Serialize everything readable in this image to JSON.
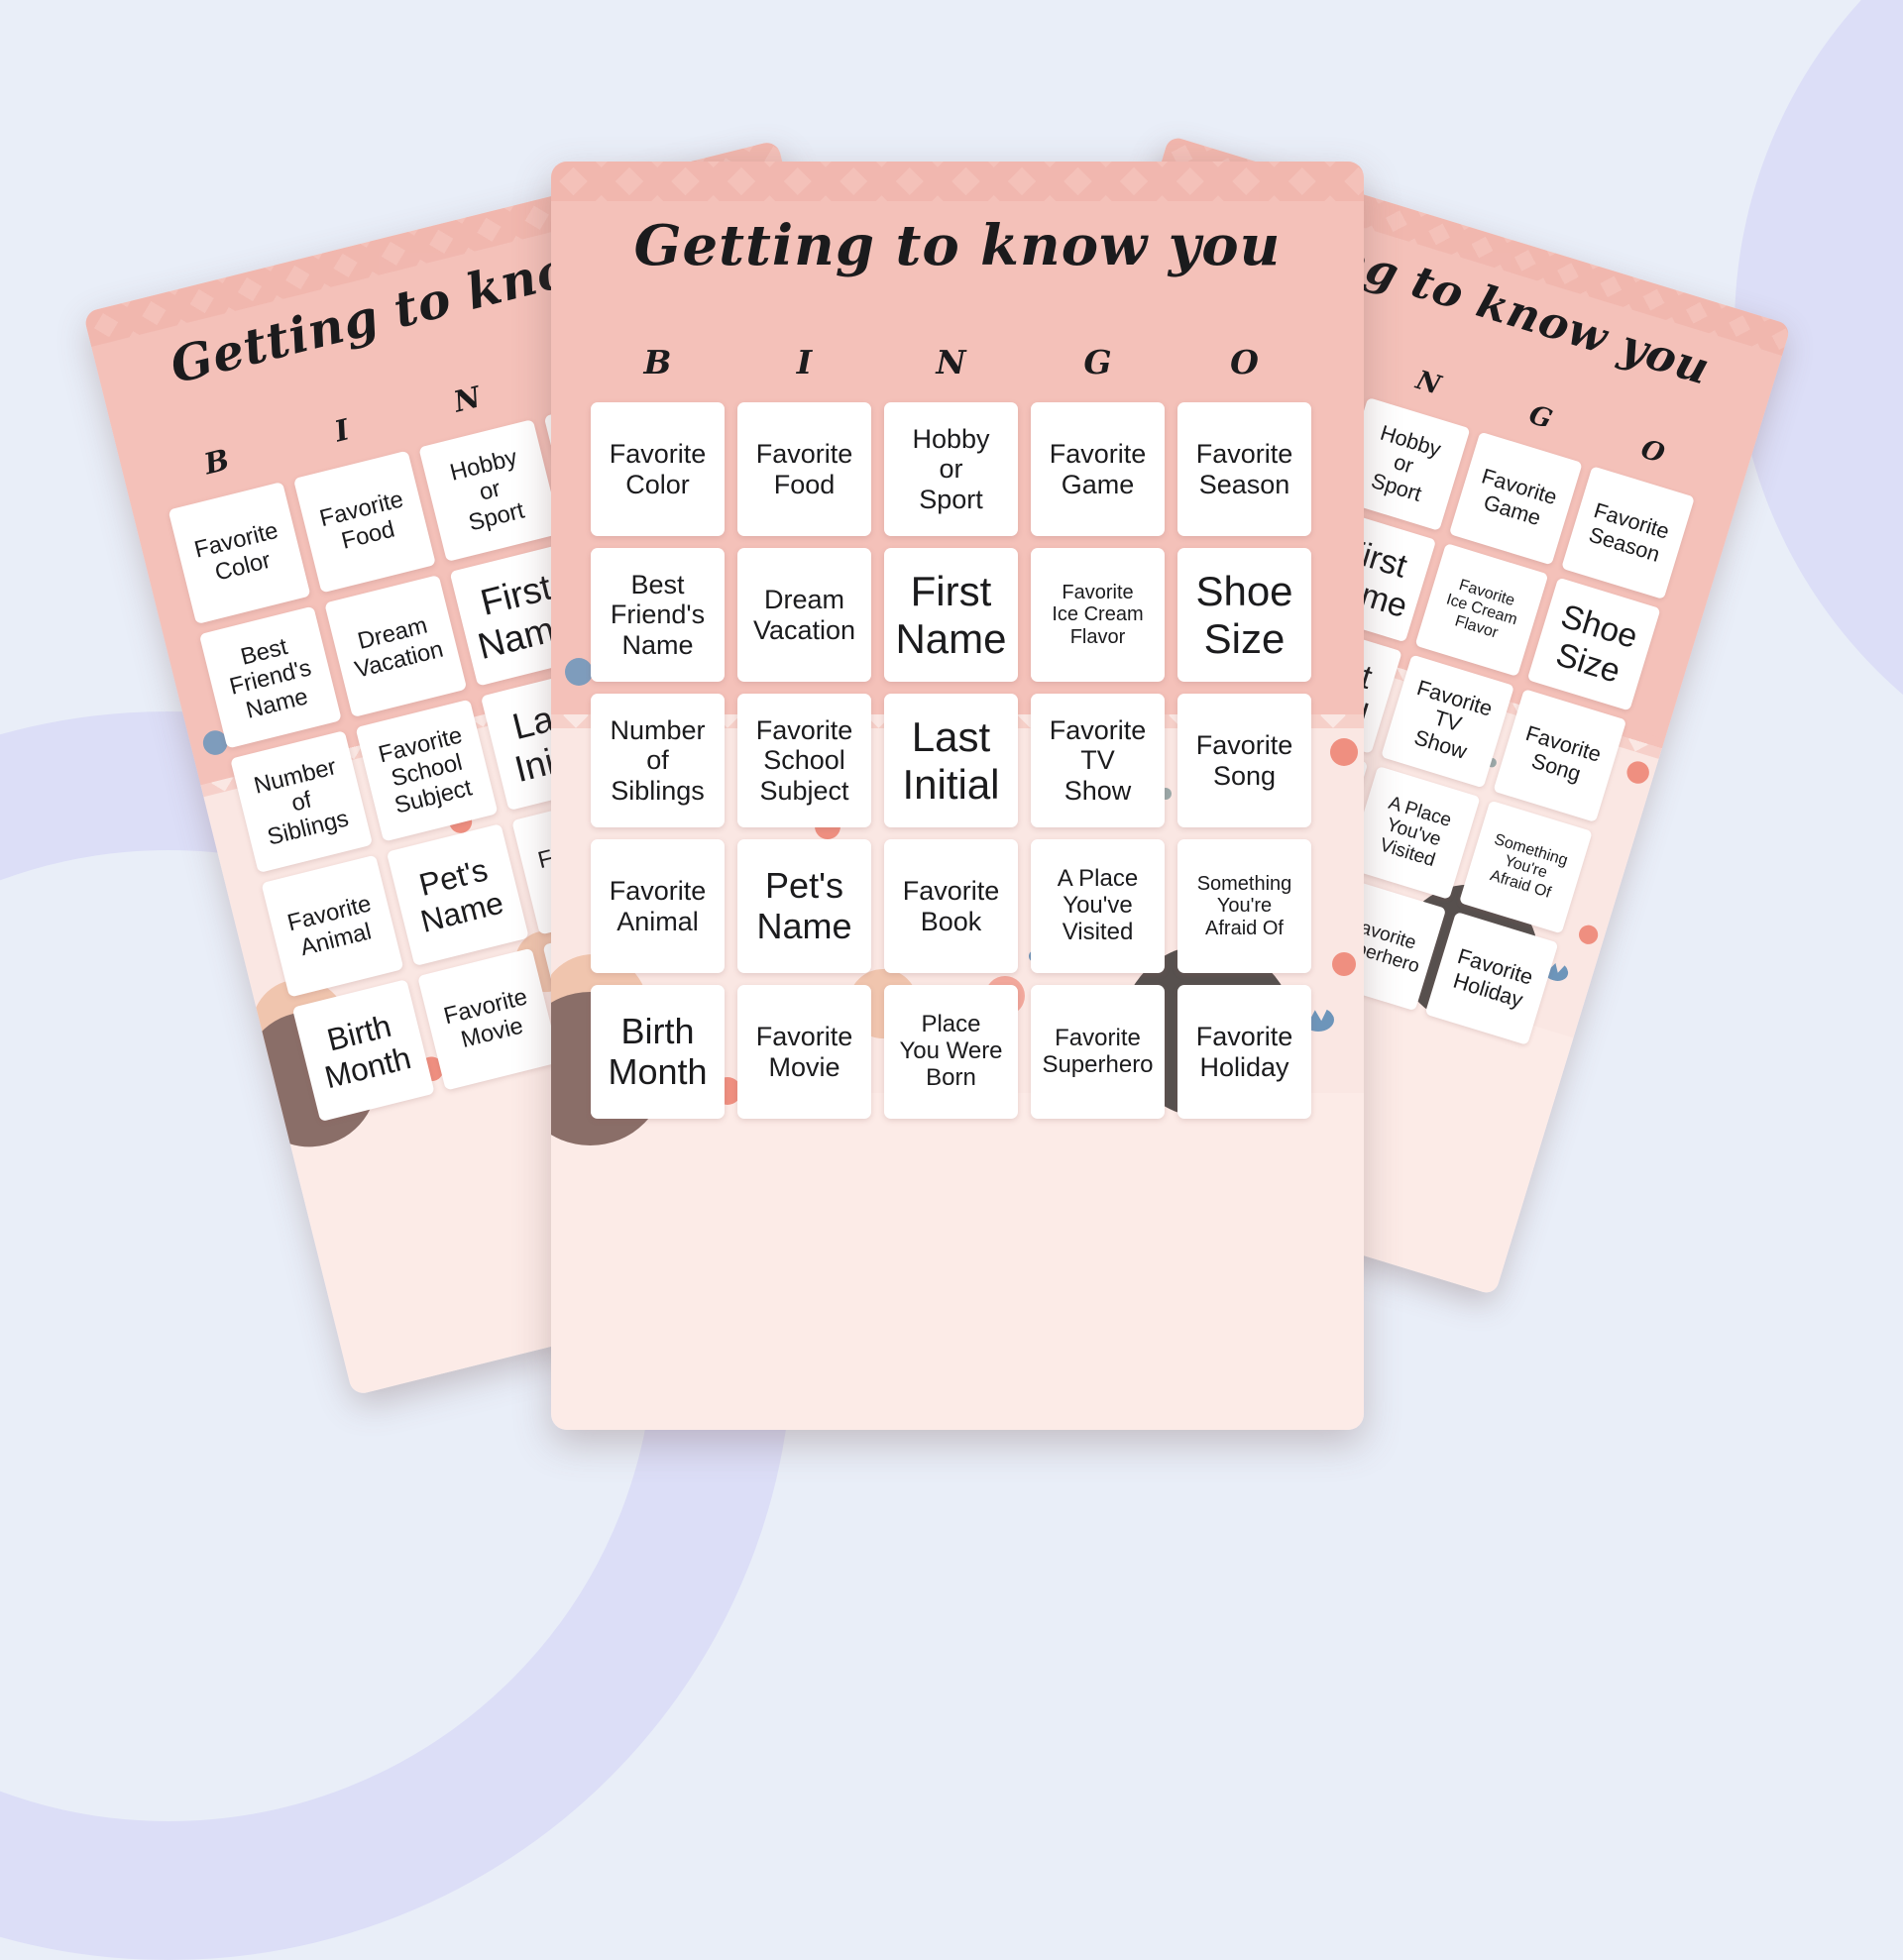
{
  "page": {
    "description_label": "Getting to know you bingo cards preview"
  },
  "palette": {
    "page_bg": "#e9eef8",
    "decor_lavender": "#dcdef7",
    "card_pink": "#f4c1b9",
    "card_pink_dark": "#efb0a7",
    "card_pink_light": "#fae7e3",
    "cell_bg": "#ffffff",
    "text_color": "#1b1b1d",
    "dot_blue": "#7e9cbc",
    "dot_gray": "#b9bdc1",
    "dot_salmon": "#ef8f80",
    "hair_brown": "#8a6e68",
    "hair_dark": "#57504e",
    "skin": "#f0c5ae",
    "ear_pink": "#f2a89c",
    "crown_blue": "#6d95ba"
  },
  "card": {
    "title": "Getting to know you",
    "bingo_letters": [
      "B",
      "I",
      "N",
      "G",
      "O"
    ],
    "rows": [
      [
        {
          "label": "Favorite\nColor",
          "size": "md"
        },
        {
          "label": "Favorite\nFood",
          "size": "md"
        },
        {
          "label": "Hobby\nor\nSport",
          "size": "md"
        },
        {
          "label": "Favorite\nGame",
          "size": "md"
        },
        {
          "label": "Favorite\nSeason",
          "size": "md"
        }
      ],
      [
        {
          "label": "Best\nFriend's\nName",
          "size": "md"
        },
        {
          "label": "Dream\nVacation",
          "size": "md"
        },
        {
          "label": "First\nName",
          "size": "xl"
        },
        {
          "label": "Favorite\nIce Cream\nFlavor",
          "size": "xs"
        },
        {
          "label": "Shoe\nSize",
          "size": "xl"
        }
      ],
      [
        {
          "label": "Number\nof\nSiblings",
          "size": "md"
        },
        {
          "label": "Favorite\nSchool\nSubject",
          "size": "md"
        },
        {
          "label": "Last\nInitial",
          "size": "xl"
        },
        {
          "label": "Favorite\nTV\nShow",
          "size": "md"
        },
        {
          "label": "Favorite\nSong",
          "size": "md"
        }
      ],
      [
        {
          "label": "Favorite\nAnimal",
          "size": "md"
        },
        {
          "label": "Pet's\nName",
          "size": "lg"
        },
        {
          "label": "Favorite\nBook",
          "size": "md"
        },
        {
          "label": "A Place\nYou've\nVisited",
          "size": "sm"
        },
        {
          "label": "Something\nYou're\nAfraid Of",
          "size": "xs"
        }
      ],
      [
        {
          "label": "Birth\nMonth",
          "size": "lg"
        },
        {
          "label": "Favorite\nMovie",
          "size": "md"
        },
        {
          "label": "Place\nYou Were\nBorn",
          "size": "sm"
        },
        {
          "label": "Favorite\nSuperhero",
          "size": "sm"
        },
        {
          "label": "Favorite\nHoliday",
          "size": "md"
        }
      ]
    ]
  },
  "cards": [
    {
      "id": "left"
    },
    {
      "id": "center"
    },
    {
      "id": "right"
    }
  ]
}
